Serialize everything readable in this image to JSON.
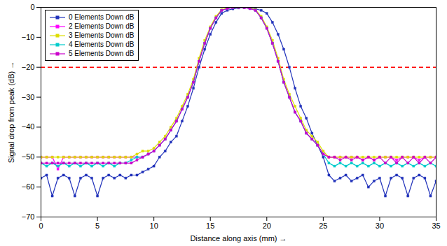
{
  "chart_data": {
    "type": "line",
    "xlabel": "Distance along axis (mm)",
    "ylabel": "Signal drop from peak (dB)",
    "xlim": [
      0,
      35
    ],
    "ylim": [
      -70,
      0
    ],
    "xticks": [
      0,
      5,
      10,
      15,
      20,
      25,
      30,
      35
    ],
    "yticks": [
      0,
      -10,
      -20,
      -30,
      -40,
      -50,
      -60,
      -70
    ],
    "grid": false,
    "legend": "upper left",
    "reference_lines": [
      {
        "y": -20,
        "color": "red",
        "line_style": "dashed"
      }
    ],
    "x": [
      0.0,
      0.5,
      1.0,
      1.5,
      2.0,
      2.5,
      3.0,
      3.5,
      4.0,
      4.5,
      5.0,
      5.5,
      6.0,
      6.5,
      7.0,
      7.5,
      8.0,
      8.5,
      9.0,
      9.5,
      10.0,
      10.5,
      11.0,
      11.5,
      12.0,
      12.5,
      13.0,
      13.5,
      14.0,
      14.5,
      15.0,
      15.5,
      16.0,
      16.5,
      17.0,
      17.5,
      18.0,
      18.5,
      19.0,
      19.5,
      20.0,
      20.5,
      21.0,
      21.5,
      22.0,
      22.5,
      23.0,
      23.5,
      24.0,
      24.5,
      25.0,
      25.5,
      26.0,
      26.5,
      27.0,
      27.5,
      28.0,
      28.5,
      29.0,
      29.5,
      30.0,
      30.5,
      31.0,
      31.5,
      32.0,
      32.5,
      33.0,
      33.5,
      34.0,
      34.5,
      35.0
    ],
    "series": [
      {
        "name": "0 Elements Down dB",
        "color": "#2233bb",
        "marker": "square",
        "values": [
          -57,
          -56,
          -63,
          -57,
          -56,
          -57,
          -63,
          -57,
          -56,
          -57,
          -63,
          -57,
          -56,
          -57,
          -56,
          -57,
          -56,
          -56,
          -55,
          -54,
          -53,
          -50,
          -48,
          -45,
          -43,
          -38,
          -33,
          -27,
          -20,
          -14,
          -9,
          -5,
          -2,
          -1,
          -0.5,
          -0.2,
          0,
          -0.2,
          -0.5,
          -1,
          -2,
          -5,
          -9,
          -14,
          -20,
          -27,
          -33,
          -37,
          -42,
          -46,
          -50,
          -56,
          -58,
          -57,
          -56,
          -58,
          -57,
          -56,
          -60,
          -58,
          -57,
          -63,
          -57,
          -56,
          -57,
          -63,
          -57,
          -56,
          -57,
          -63,
          -58
        ]
      },
      {
        "name": "2 Elements Down dB",
        "color": "#ff00ff",
        "marker": "square",
        "values": [
          -50,
          -50,
          -50,
          -54,
          -50,
          -50,
          -50,
          -50,
          -50,
          -50,
          -50,
          -50,
          -50,
          -50,
          -50,
          -50,
          -50,
          -50,
          -50,
          -49,
          -48,
          -46,
          -44,
          -41,
          -38,
          -34,
          -30,
          -25,
          -18,
          -12,
          -7,
          -3.5,
          -1,
          -0.4,
          -0.1,
          0,
          -0.1,
          -0.4,
          -1,
          -3.5,
          -7,
          -12,
          -18,
          -25,
          -30,
          -35,
          -38,
          -42,
          -44,
          -46,
          -49,
          -50,
          -50,
          -50,
          -50,
          -50,
          -50,
          -51,
          -50,
          -51,
          -50,
          -50,
          -50,
          -51,
          -50,
          -50,
          -50,
          -51,
          -50,
          -50,
          -50
        ]
      },
      {
        "name": "3 Elements Down dB",
        "color": "#dddd00",
        "marker": "square",
        "values": [
          -50,
          -50,
          -50,
          -50,
          -50,
          -50,
          -50,
          -50,
          -50,
          -50,
          -50,
          -50,
          -50,
          -50,
          -50,
          -50,
          -50,
          -49,
          -48,
          -48,
          -47,
          -45,
          -43,
          -40,
          -37,
          -33,
          -29,
          -24,
          -17,
          -11,
          -6.5,
          -3,
          -0.8,
          -0.2,
          -0.05,
          0,
          -0.05,
          -0.2,
          -0.8,
          -3,
          -6.5,
          -11,
          -17,
          -24,
          -29,
          -33,
          -37,
          -41,
          -43,
          -45,
          -48,
          -50,
          -50,
          -50,
          -50,
          -50,
          -50,
          -50,
          -50,
          -50,
          -50,
          -50,
          -50,
          -50,
          -50,
          -50,
          -50,
          -50,
          -50,
          -50,
          -50
        ]
      },
      {
        "name": "4 Elements Down dB",
        "color": "#00cccc",
        "marker": "square",
        "values": [
          -52,
          -53,
          -52,
          -53,
          -52,
          -53,
          -52,
          -53,
          -52,
          -53,
          -52,
          -53,
          -52,
          -53,
          -52,
          -52,
          -51,
          -50,
          -50,
          -49,
          -48,
          -46,
          -44,
          -41,
          -38,
          -34,
          -30,
          -25,
          -18,
          -12,
          -7,
          -3.5,
          -1,
          -0.4,
          -0.1,
          0,
          -0.1,
          -0.4,
          -1,
          -3.5,
          -7,
          -12,
          -18,
          -25,
          -30,
          -35,
          -38,
          -42,
          -44,
          -46,
          -49,
          -52,
          -53,
          -52,
          -53,
          -52,
          -53,
          -52,
          -53,
          -52,
          -53,
          -52,
          -53,
          -52,
          -53,
          -52,
          -53,
          -52,
          -53,
          -52,
          -53
        ]
      },
      {
        "name": "5 Elements Down dB",
        "color": "#cc00cc",
        "marker": "square",
        "values": [
          -52,
          -52,
          -52,
          -52,
          -52,
          -52,
          -52,
          -52,
          -52,
          -52,
          -52,
          -52,
          -52,
          -52,
          -52,
          -52,
          -52,
          -51,
          -50,
          -49,
          -48,
          -46,
          -44,
          -41,
          -38,
          -34,
          -30,
          -25,
          -18,
          -12,
          -7,
          -3.5,
          -1,
          -0.4,
          -0.1,
          0,
          -0.1,
          -0.4,
          -1,
          -3.5,
          -7,
          -12,
          -18,
          -25,
          -30,
          -35,
          -38,
          -42,
          -44,
          -46,
          -49,
          -50,
          -50,
          -51,
          -50,
          -51,
          -50,
          -51,
          -50,
          -51,
          -50,
          -52,
          -50,
          -52,
          -50,
          -52,
          -50,
          -52,
          -50,
          -52,
          -50
        ]
      }
    ]
  }
}
